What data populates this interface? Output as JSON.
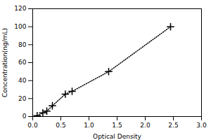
{
  "chart_data": {
    "type": "line",
    "x": [
      0.08,
      0.18,
      0.25,
      0.35,
      0.58,
      0.7,
      1.35,
      2.45
    ],
    "values": [
      1.0,
      4.0,
      6.0,
      12.0,
      25.0,
      28.0,
      50.0,
      100.0
    ],
    "xlabel": "Optical Density",
    "ylabel": "Concentration(ng/mL)",
    "xlim": [
      0,
      3
    ],
    "ylim": [
      0,
      120
    ],
    "xticks": [
      {
        "value": 0,
        "label": "0.0"
      },
      0.5,
      {
        "value": 1,
        "label": "1.0"
      },
      1.5,
      {
        "value": 2,
        "label": "2.0"
      },
      2.5,
      {
        "value": 3,
        "label": "3.0"
      }
    ],
    "yticks": [
      0,
      20,
      40,
      60,
      80,
      100,
      120
    ],
    "marker": "+",
    "line_style": "dotted",
    "grid": false
  }
}
